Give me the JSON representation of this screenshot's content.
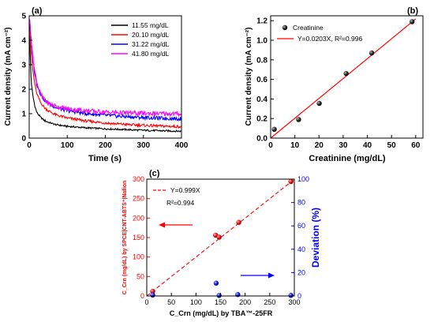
{
  "panels": [
    {
      "label": "(a)"
    },
    {
      "label": "(b)"
    },
    {
      "label": "(c)"
    }
  ],
  "chart_data": [
    {
      "type": "line",
      "panel": "(a)",
      "xlabel": "Time (s)",
      "ylabel": "Current density (mA cm⁻²)",
      "xlim": [
        0,
        400
      ],
      "ylim": [
        0,
        5
      ],
      "xticks": [
        0,
        100,
        200,
        300,
        400
      ],
      "yticks": [
        0,
        1,
        2,
        3,
        4,
        5
      ],
      "legend_position": "top-right",
      "series": [
        {
          "name": "11.55 mg/dL",
          "color": "#000000",
          "x": [
            0,
            1,
            2,
            4,
            6,
            10,
            15,
            20,
            30,
            40,
            50,
            70,
            100,
            150,
            200,
            250,
            300,
            350,
            400
          ],
          "y": [
            4.4,
            4.1,
            3.6,
            2.8,
            2.2,
            1.7,
            1.3,
            1.05,
            0.85,
            0.72,
            0.65,
            0.55,
            0.48,
            0.42,
            0.38,
            0.35,
            0.32,
            0.3,
            0.28
          ]
        },
        {
          "name": "20.10 mg/dL",
          "color": "#ff0000",
          "x": [
            0,
            1,
            2,
            4,
            6,
            10,
            15,
            20,
            30,
            40,
            50,
            70,
            100,
            150,
            200,
            250,
            300,
            350,
            400
          ],
          "y": [
            4.9,
            4.7,
            4.3,
            3.8,
            3.3,
            2.7,
            2.2,
            1.8,
            1.45,
            1.25,
            1.12,
            0.95,
            0.82,
            0.7,
            0.62,
            0.56,
            0.52,
            0.49,
            0.47
          ]
        },
        {
          "name": "31.22 mg/dL",
          "color": "#0000ff",
          "x": [
            0,
            1,
            2,
            4,
            6,
            10,
            15,
            20,
            30,
            40,
            50,
            70,
            100,
            150,
            200,
            250,
            300,
            350,
            400
          ],
          "y": [
            4.9,
            4.8,
            4.6,
            4.2,
            3.8,
            3.2,
            2.6,
            2.2,
            1.8,
            1.55,
            1.42,
            1.25,
            1.12,
            1.0,
            0.93,
            0.88,
            0.84,
            0.81,
            0.79
          ]
        },
        {
          "name": "41.80 mg/dL",
          "color": "#ff00ff",
          "x": [
            0,
            1,
            2,
            4,
            6,
            10,
            15,
            20,
            30,
            40,
            50,
            70,
            100,
            150,
            200,
            250,
            300,
            350,
            400
          ],
          "y": [
            4.9,
            4.85,
            4.7,
            4.3,
            3.9,
            3.3,
            2.7,
            2.3,
            1.8,
            1.55,
            1.42,
            1.3,
            1.2,
            1.12,
            1.06,
            1.03,
            1.01,
            1.0,
            0.99
          ]
        }
      ]
    },
    {
      "type": "scatter",
      "panel": "(b)",
      "xlabel": "Creatinine (mg/dL)",
      "ylabel": "Current density (mA cm⁻²)",
      "xlim": [
        0,
        63
      ],
      "ylim": [
        0,
        1.25
      ],
      "xticks": [
        0,
        10,
        20,
        30,
        40,
        50,
        60
      ],
      "yticks": [
        0.0,
        0.2,
        0.4,
        0.6,
        0.8,
        1.0,
        1.2
      ],
      "legend_position": "top-left",
      "series": [
        {
          "name": "Creatinine",
          "color": "#000000",
          "x": [
            1.5,
            11.55,
            20.1,
            31.22,
            41.8,
            58.5
          ],
          "y": [
            0.09,
            0.19,
            0.355,
            0.66,
            0.87,
            1.19
          ]
        }
      ],
      "fit": {
        "name": "Y=0.0203X, R²=0.996",
        "color": "#ff0000",
        "slope": 0.0203,
        "x_range": [
          0,
          60
        ]
      }
    },
    {
      "type": "scatter",
      "panel": "(c)",
      "xlabel": "C_Crn (mg/dL) by TBA™-25FR",
      "ylabel_left": "C_Crn (mg/dL) by SPCE|CNT-ABTS⁺|Nafion",
      "ylabel_right": "Deviation (%)",
      "xlim": [
        0,
        300
      ],
      "ylim_left": [
        0,
        300
      ],
      "ylim_right": [
        0,
        100
      ],
      "xticks": [
        0,
        50,
        100,
        150,
        200,
        250,
        300
      ],
      "yticks_left": [
        0,
        50,
        100,
        150,
        200,
        250,
        300
      ],
      "yticks_right": [
        0,
        20,
        40,
        60,
        80,
        100
      ],
      "annotations": [
        "Y=0.999X",
        "R²=0.994"
      ],
      "series": [
        {
          "name": "Y=0.999X",
          "axis": "left",
          "color": "#ff0000",
          "x": [
            12,
            140,
            147,
            187,
            293
          ],
          "y": [
            12,
            156,
            151,
            189,
            294
          ]
        },
        {
          "axis": "right",
          "color": "#0000ff",
          "x": [
            12,
            141,
            147,
            185,
            293
          ],
          "y": [
            0.8,
            11,
            0.4,
            1.2,
            0.5
          ]
        }
      ],
      "fit": {
        "slope": 0.999,
        "x_range": [
          0,
          300
        ],
        "color": "#ff0000",
        "dashed": true
      }
    }
  ]
}
